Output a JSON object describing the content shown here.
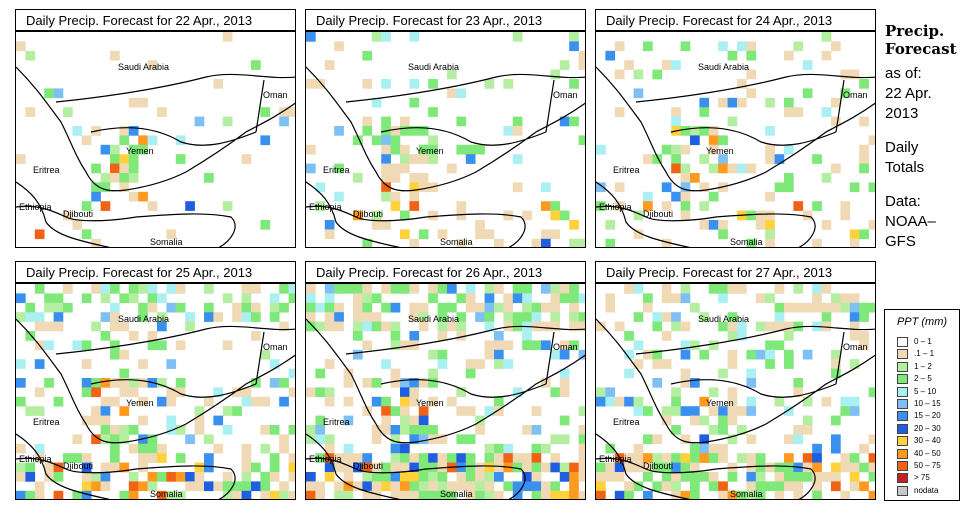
{
  "panels": [
    {
      "title": "Daily Precip. Forecast for  22 Apr., 2013",
      "density": 0.1,
      "seed": 11,
      "south": 0.9
    },
    {
      "title": "Daily Precip. Forecast for  23 Apr., 2013",
      "density": 0.22,
      "seed": 23,
      "south": 1.2
    },
    {
      "title": "Daily Precip. Forecast for  24 Apr., 2013",
      "density": 0.28,
      "seed": 37,
      "south": 1.0
    },
    {
      "title": "Daily Precip. Forecast for  25 Apr., 2013",
      "density": 0.45,
      "seed": 41,
      "south": 1.3
    },
    {
      "title": "Daily Precip. Forecast for  26 Apr., 2013",
      "density": 0.55,
      "seed": 53,
      "south": 1.5
    },
    {
      "title": "Daily Precip. Forecast for  27 Apr., 2013",
      "density": 0.42,
      "seed": 67,
      "south": 1.6
    }
  ],
  "map_labels": {
    "saudi": "Saudi Arabia",
    "oman": "Oman",
    "yemen": "Yemen",
    "eritrea": "Eritrea",
    "ethiopia": "Ethiopia",
    "djibouti": "Djibouti",
    "somalia": "Somalia"
  },
  "side": {
    "title1": "Precip.",
    "title2": "Forecast",
    "asof": "as of:",
    "date1": "22 Apr.",
    "date2": "2013",
    "daily1": "Daily",
    "daily2": "Totals",
    "data1": "Data:",
    "data2": "NOAA–",
    "data3": "GFS"
  },
  "legend": {
    "title": "PPT (mm)",
    "items": [
      {
        "label": "0 – 1",
        "color": "#ffffff"
      },
      {
        "label": ".1 – 1",
        "color": "#f0d9b5"
      },
      {
        "label": "1 – 2",
        "color": "#b4eea0"
      },
      {
        "label": "2 – 5",
        "color": "#7ee879"
      },
      {
        "label": "5 – 10",
        "color": "#aaf0f2"
      },
      {
        "label": "10 – 15",
        "color": "#7ec0f4"
      },
      {
        "label": "15 – 20",
        "color": "#3a90ee"
      },
      {
        "label": "20 – 30",
        "color": "#1f5ee0"
      },
      {
        "label": "30 – 40",
        "color": "#ffd23c"
      },
      {
        "label": "40 – 50",
        "color": "#ff9a1e"
      },
      {
        "label": "50 – 75",
        "color": "#f26214"
      },
      {
        "label": "> 75",
        "color": "#c81e1e"
      },
      {
        "label": "nodata",
        "color": "#c8c8c8"
      }
    ]
  }
}
